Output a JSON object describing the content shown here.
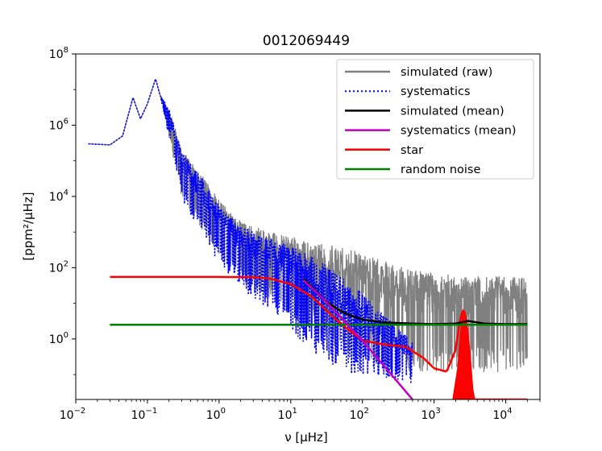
{
  "chart_data": {
    "type": "line",
    "title": "0012069449",
    "xlabel": "ν [μHz]",
    "ylabel": "[ppm²/μHz]",
    "x_scale": "log",
    "y_scale": "log",
    "xlim": [
      0.01,
      30000
    ],
    "ylim": [
      0.02,
      100000000
    ],
    "grid": false,
    "legend_position": "top-right",
    "x_ticks": [
      {
        "value": 0.01,
        "base": "10",
        "exp": "−2"
      },
      {
        "value": 0.1,
        "base": "10",
        "exp": "−1"
      },
      {
        "value": 1,
        "base": "10",
        "exp": "0"
      },
      {
        "value": 10,
        "base": "10",
        "exp": "1"
      },
      {
        "value": 100,
        "base": "10",
        "exp": "2"
      },
      {
        "value": 1000,
        "base": "10",
        "exp": "3"
      },
      {
        "value": 10000,
        "base": "10",
        "exp": "4"
      }
    ],
    "y_ticks": [
      {
        "value": 1,
        "base": "10",
        "exp": "0"
      },
      {
        "value": 100,
        "base": "10",
        "exp": "2"
      },
      {
        "value": 10000,
        "base": "10",
        "exp": "4"
      },
      {
        "value": 1000000,
        "base": "10",
        "exp": "6"
      },
      {
        "value": 100000000,
        "base": "10",
        "exp": "8"
      }
    ],
    "series": [
      {
        "name": "simulated (raw)",
        "color": "#808080",
        "style": "solid",
        "x": [
          0.015,
          0.03,
          0.045,
          0.063,
          0.08,
          0.1,
          0.13,
          0.15,
          0.2,
          0.3,
          0.5,
          1,
          2,
          5,
          10,
          20,
          50,
          100,
          200,
          500,
          1000,
          2000,
          5000,
          10000,
          20000
        ],
        "y_upper": [
          300000,
          280000,
          500000,
          6000000,
          1500000,
          4000000,
          20000000,
          7000000,
          3000000,
          200000,
          60000,
          8000,
          2000,
          1000,
          800,
          500,
          400,
          250,
          150,
          90,
          70,
          60,
          60,
          55,
          50
        ],
        "y_lower": [
          300000,
          280000,
          500000,
          6000000,
          1500000,
          4000000,
          20000000,
          7000000,
          300000,
          5000,
          800,
          100,
          20,
          5,
          2,
          0.5,
          0.1,
          0.05,
          0.03,
          0.03,
          0.03,
          0.03,
          0.03,
          0.03,
          0.03
        ]
      },
      {
        "name": "systematics",
        "color": "#0000ff",
        "style": "dotted",
        "x": [
          0.015,
          0.03,
          0.045,
          0.063,
          0.08,
          0.1,
          0.13,
          0.15,
          0.2,
          0.3,
          0.5,
          1,
          2,
          5,
          10,
          20,
          50,
          100,
          200,
          500
        ],
        "y_upper": [
          300000,
          280000,
          500000,
          6000000,
          1500000,
          4000000,
          20000000,
          7000000,
          3000000,
          180000,
          50000,
          6000,
          1500,
          700,
          400,
          200,
          60,
          20,
          5,
          0.8
        ],
        "y_lower": [
          300000,
          280000,
          500000,
          6000000,
          1500000,
          4000000,
          20000000,
          7000000,
          300000,
          4000,
          600,
          60,
          10,
          2,
          0.5,
          0.1,
          0.03,
          0.03,
          0.03,
          0.03
        ]
      },
      {
        "name": "simulated (mean)",
        "color": "#000000",
        "style": "solid",
        "x": [
          15,
          20,
          30,
          50,
          70,
          100,
          200,
          500,
          1000,
          2000,
          3000,
          5000,
          10000,
          20000
        ],
        "y": [
          50,
          28,
          12,
          6,
          4.5,
          3.5,
          2.9,
          2.7,
          2.6,
          2.7,
          3.2,
          2.7,
          2.6,
          2.6
        ]
      },
      {
        "name": "systematics (mean)",
        "color": "#bf00bf",
        "style": "solid",
        "x": [
          15,
          30,
          100,
          500
        ],
        "y": [
          45,
          12,
          0.9,
          0.02
        ]
      },
      {
        "name": "star",
        "color": "#ff0000",
        "style": "solid",
        "x": [
          0.03,
          0.1,
          0.5,
          1,
          3,
          5,
          10,
          20,
          40,
          60,
          100,
          200,
          400,
          700,
          1000,
          1500,
          2000,
          2300,
          2600,
          2800,
          3100,
          3500,
          20000
        ],
        "y": [
          55,
          55,
          55,
          55,
          54,
          50,
          35,
          15,
          4,
          2,
          0.9,
          0.7,
          0.6,
          0.3,
          0.15,
          0.12,
          0.5,
          3.5,
          7.5,
          3.5,
          0.5,
          0.02,
          0.02
        ]
      },
      {
        "name": "random noise",
        "color": "#007f00",
        "style": "solid",
        "x": [
          0.03,
          20000
        ],
        "y": [
          2.5,
          2.5
        ]
      }
    ]
  }
}
